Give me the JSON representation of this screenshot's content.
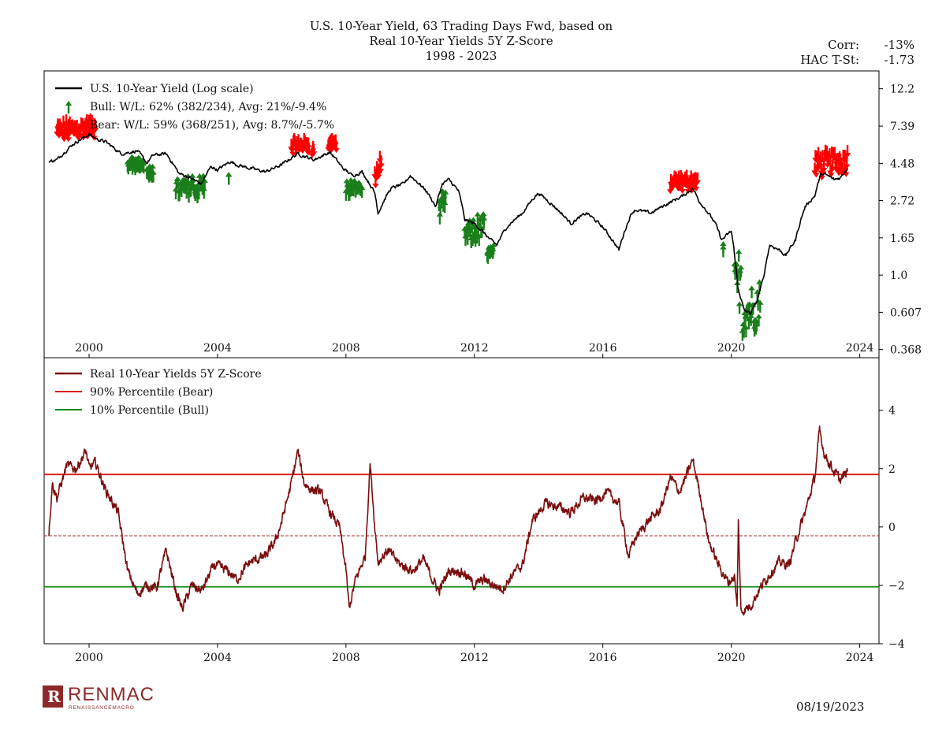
{
  "header": {
    "title_line1": "U.S. 10-Year Yield, 63 Trading Days Fwd, based on",
    "title_line2": "Real 10-Year Yields 5Y Z-Score",
    "title_line3": "1998 - 2023",
    "corr_label": "Corr:",
    "corr_value": "-13%",
    "tstat_label": "HAC T-St:",
    "tstat_value": "-1.73"
  },
  "footer": {
    "logo_text": "RENMAC",
    "logo_mark": "R",
    "logo_sub": "RENAISSANCEMACRO",
    "date": "08/19/2023"
  },
  "colors": {
    "yield_line": "#000000",
    "zscore_line": "#7b0d0d",
    "bear": "#ff0000",
    "bull": "#1a7f1a",
    "bear_line": "#d61515",
    "bull_line": "#1a8a1a",
    "mean_line": "#a03030"
  },
  "chart_data": [
    {
      "type": "line",
      "title": "U.S. 10-Year Yield (Log scale)",
      "scale": "log",
      "x_range": [
        1998.6,
        2024.6
      ],
      "ylim": [
        0.33,
        15.5
      ],
      "x_ticks": [
        2000,
        2004,
        2008,
        2012,
        2016,
        2020,
        2024
      ],
      "y_ticks": [
        0.368,
        0.607,
        1.0,
        1.65,
        2.72,
        4.48,
        7.39,
        12.2
      ],
      "y_tick_labels": [
        "0.368",
        "0.607",
        "1.0",
        "1.65",
        "2.72",
        "4.48",
        "7.39",
        "12.2"
      ],
      "legend": [
        {
          "symbol": "line",
          "label": "U.S. 10-Year Yield (Log scale)"
        },
        {
          "symbol": "up-arrow",
          "label": "Bull:   W/L: 62% (382/234), Avg: 21%/-9.4%"
        },
        {
          "symbol": "down-arrow",
          "label": "Bear:   W/L: 59% (368/251), Avg: 8.7%/-5.7%"
        }
      ],
      "legend_position": "top-left",
      "series": {
        "name": "U.S. 10-Year Yield",
        "x": [
          1998.75,
          1999.0,
          1999.5,
          2000.0,
          2000.25,
          2000.5,
          2001.0,
          2001.5,
          2001.8,
          2002.0,
          2002.4,
          2002.8,
          2003.0,
          2003.5,
          2003.8,
          2004.0,
          2004.4,
          2004.6,
          2005.0,
          2005.5,
          2006.0,
          2006.5,
          2007.0,
          2007.5,
          2007.9,
          2008.2,
          2008.5,
          2008.9,
          2009.0,
          2009.4,
          2009.8,
          2010.0,
          2010.5,
          2010.8,
          2011.0,
          2011.2,
          2011.5,
          2011.7,
          2012.0,
          2012.5,
          2012.7,
          2013.0,
          2013.5,
          2013.9,
          2014.0,
          2014.5,
          2015.0,
          2015.5,
          2016.0,
          2016.5,
          2016.9,
          2017.0,
          2017.5,
          2018.0,
          2018.5,
          2018.8,
          2019.0,
          2019.5,
          2019.7,
          2020.0,
          2020.2,
          2020.4,
          2020.6,
          2020.8,
          2021.0,
          2021.2,
          2021.5,
          2021.7,
          2022.0,
          2022.3,
          2022.6,
          2022.8,
          2023.0,
          2023.2,
          2023.4,
          2023.62
        ],
        "values": [
          4.6,
          4.7,
          5.8,
          6.6,
          6.2,
          6.0,
          5.1,
          5.3,
          4.5,
          5.0,
          5.1,
          3.9,
          3.8,
          3.4,
          4.3,
          4.1,
          4.6,
          4.4,
          4.2,
          4.0,
          4.4,
          5.1,
          4.7,
          5.2,
          4.2,
          3.8,
          4.0,
          3.0,
          2.3,
          3.2,
          3.4,
          3.8,
          3.1,
          2.5,
          3.4,
          3.6,
          3.1,
          2.1,
          2.0,
          1.6,
          1.5,
          1.9,
          2.3,
          2.9,
          3.0,
          2.5,
          2.0,
          2.3,
          1.9,
          1.4,
          2.3,
          2.4,
          2.3,
          2.6,
          2.9,
          3.2,
          2.7,
          2.0,
          1.6,
          1.8,
          0.85,
          0.62,
          0.6,
          0.7,
          0.95,
          1.5,
          1.4,
          1.3,
          1.6,
          2.5,
          2.9,
          3.9,
          3.8,
          3.6,
          3.7,
          4.2
        ]
      },
      "bear_signals": {
        "periods": [
          [
            1999.0,
            2000.2,
            5.6,
            6.8
          ],
          [
            2006.3,
            2006.85,
            4.75,
            5.2
          ],
          [
            2006.95,
            2007.0,
            4.7,
            4.7
          ],
          [
            2007.45,
            2007.7,
            4.9,
            5.2
          ],
          [
            2008.9,
            2009.1,
            3.0,
            4.0
          ],
          [
            2018.1,
            2018.95,
            2.85,
            3.2
          ],
          [
            2022.6,
            2023.62,
            3.5,
            4.5
          ]
        ]
      },
      "bull_signals": {
        "periods": [
          [
            2001.2,
            2001.7,
            5.0,
            5.2
          ],
          [
            2001.8,
            2002.0,
            4.5,
            4.6
          ],
          [
            2002.7,
            2003.6,
            3.3,
            4.1
          ],
          [
            2004.35,
            2004.35,
            4.4,
            4.4
          ],
          [
            2008.0,
            2008.5,
            3.5,
            3.9
          ],
          [
            2010.9,
            2011.1,
            2.5,
            3.3
          ],
          [
            2011.7,
            2012.3,
            1.8,
            2.4
          ],
          [
            2012.4,
            2012.6,
            1.5,
            1.6
          ],
          [
            2019.75,
            2019.75,
            1.6,
            1.6
          ],
          [
            2020.1,
            2020.3,
            0.7,
            1.5
          ],
          [
            2020.35,
            2020.9,
            0.55,
            0.95
          ]
        ]
      }
    },
    {
      "type": "line",
      "title": "Real 10-Year Yields 5Y Z-Score",
      "x_range": [
        1998.6,
        2024.6
      ],
      "ylim": [
        -4.0,
        5.8
      ],
      "x_ticks": [
        2000,
        2004,
        2008,
        2012,
        2016,
        2020,
        2024
      ],
      "y_ticks": [
        -4,
        -2,
        0,
        2,
        4
      ],
      "legend": [
        {
          "symbol": "line",
          "label": "Real 10-Year Yields 5Y Z-Score"
        },
        {
          "symbol": "line-red",
          "label": "90% Percentile (Bear)"
        },
        {
          "symbol": "line-green",
          "label": "10% Percentile (Bull)"
        }
      ],
      "legend_position": "top-left",
      "thresholds": {
        "bear": 1.8,
        "bull": -2.05,
        "mean": -0.3
      },
      "series": {
        "name": "Real 10-Year Yields 5Y Z-Score",
        "x": [
          1998.75,
          1998.85,
          1999.0,
          1999.3,
          1999.6,
          1999.9,
          2000.0,
          2000.2,
          2000.5,
          2000.9,
          2001.2,
          2001.5,
          2001.8,
          2002.1,
          2002.4,
          2002.7,
          2002.9,
          2003.2,
          2003.5,
          2003.9,
          2004.3,
          2004.6,
          2005.0,
          2005.5,
          2005.8,
          2006.0,
          2006.3,
          2006.5,
          2006.7,
          2006.9,
          2007.2,
          2007.5,
          2007.8,
          2008.0,
          2008.1,
          2008.3,
          2008.6,
          2008.75,
          2008.9,
          2009.0,
          2009.3,
          2009.7,
          2010.1,
          2010.4,
          2010.7,
          2010.9,
          2011.2,
          2011.5,
          2011.7,
          2012.0,
          2012.3,
          2012.6,
          2012.9,
          2013.2,
          2013.5,
          2013.8,
          2014.2,
          2014.6,
          2015.0,
          2015.4,
          2015.8,
          2016.1,
          2016.5,
          2016.8,
          2017.0,
          2017.4,
          2017.8,
          2018.1,
          2018.4,
          2018.8,
          2019.0,
          2019.3,
          2019.6,
          2019.9,
          2020.1,
          2020.18,
          2020.22,
          2020.3,
          2020.6,
          2020.9,
          2021.2,
          2021.5,
          2021.8,
          2022.0,
          2022.3,
          2022.6,
          2022.75,
          2022.9,
          2023.2,
          2023.4,
          2023.62
        ],
        "values": [
          -0.2,
          1.5,
          1.0,
          2.1,
          2.0,
          2.6,
          2.0,
          2.2,
          1.3,
          0.5,
          -1.5,
          -2.3,
          -2.0,
          -2.1,
          -0.8,
          -2.2,
          -2.8,
          -2.0,
          -2.2,
          -1.3,
          -1.5,
          -1.8,
          -1.2,
          -1.0,
          -0.5,
          0.2,
          1.5,
          2.6,
          1.5,
          1.3,
          1.2,
          0.5,
          0.0,
          -1.5,
          -2.8,
          -1.8,
          -1.0,
          2.2,
          0.0,
          -1.2,
          -0.8,
          -1.3,
          -1.5,
          -1.1,
          -1.8,
          -2.2,
          -1.5,
          -1.5,
          -1.6,
          -2.0,
          -1.8,
          -2.0,
          -2.1,
          -1.6,
          -1.3,
          0.2,
          0.8,
          0.7,
          0.5,
          1.0,
          0.9,
          1.2,
          0.8,
          -1.0,
          -0.4,
          0.2,
          0.6,
          1.7,
          1.2,
          2.3,
          1.3,
          -0.5,
          -1.3,
          -1.9,
          -1.7,
          -2.8,
          0.2,
          -2.9,
          -2.7,
          -2.1,
          -1.6,
          -1.2,
          -1.3,
          -0.5,
          0.5,
          1.7,
          3.3,
          2.5,
          1.9,
          1.6,
          1.9
        ]
      }
    }
  ]
}
